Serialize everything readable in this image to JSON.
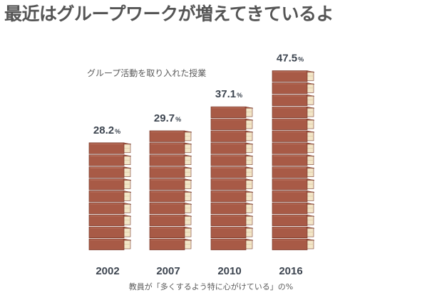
{
  "page": {
    "title": "最近はグループワークが増えてきているよ",
    "subtitle": "グループ活動を取り入れた授業",
    "footnote": "教員が「多くするよう特に心がけている」の%"
  },
  "colors": {
    "book_cover": "#a85a46",
    "book_pages": "#f3e6c8",
    "book_edge": "#7a3b2c",
    "text_dark": "#3d4550",
    "title_gray": "#555555"
  },
  "chart_data": {
    "type": "bar",
    "title": "グループ活動を取り入れた授業",
    "xlabel": "",
    "ylabel": "",
    "unit": "%",
    "categories": [
      "2002",
      "2007",
      "2010",
      "2016"
    ],
    "values": [
      28.2,
      29.7,
      37.1,
      47.5
    ],
    "value_labels": [
      "28.2",
      "29.7",
      "37.1",
      "47.5"
    ],
    "books_per_bar": [
      9,
      10,
      12,
      15
    ],
    "ylim": [
      0,
      50
    ],
    "grid": false,
    "legend": "none"
  }
}
